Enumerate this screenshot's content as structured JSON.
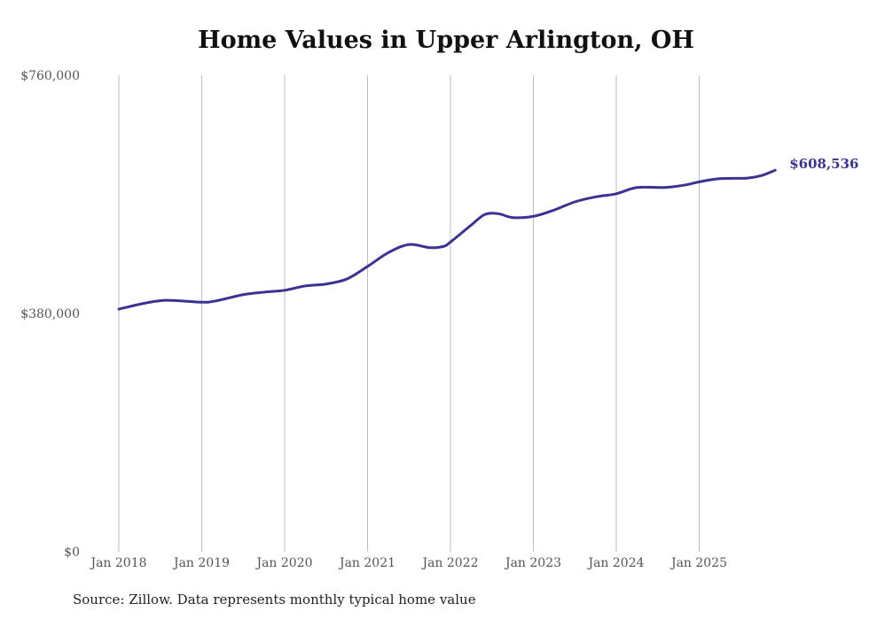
{
  "chart_data": {
    "type": "line",
    "title": "Home Values in Upper Arlington, OH",
    "source": "Source: Zillow. Data represents monthly typical home value",
    "xlabel": "",
    "ylabel": "",
    "ylim": [
      0,
      760000
    ],
    "yticks": [
      0,
      380000,
      760000
    ],
    "ytick_labels": [
      "$0",
      "$380,000",
      "$760,000"
    ],
    "xticks": [
      "2018-01",
      "2019-01",
      "2020-01",
      "2021-01",
      "2022-01",
      "2023-01",
      "2024-01",
      "2025-01"
    ],
    "xtick_labels": [
      "Jan 2018",
      "Jan 2019",
      "Jan 2020",
      "Jan 2021",
      "Jan 2022",
      "Jan 2023",
      "Jan 2024",
      "Jan 2025"
    ],
    "grid": "vertical",
    "line_color": "#3b3391",
    "end_label": "$608,536",
    "series": [
      {
        "name": "Typical home value",
        "x": [
          "2018-01",
          "2018-05",
          "2018-08",
          "2019-01",
          "2019-03",
          "2019-07",
          "2019-10",
          "2020-01",
          "2020-04",
          "2020-07",
          "2020-10",
          "2021-01",
          "2021-04",
          "2021-07",
          "2021-10",
          "2021-12",
          "2022-01",
          "2022-04",
          "2022-06",
          "2022-08",
          "2022-10",
          "2023-01",
          "2023-04",
          "2023-07",
          "2023-10",
          "2024-01",
          "2024-04",
          "2024-08",
          "2024-11",
          "2025-01",
          "2025-04",
          "2025-08",
          "2025-10",
          "2025-12"
        ],
        "values": [
          387000,
          397000,
          401000,
          398000,
          400000,
          410000,
          414000,
          417000,
          424000,
          427000,
          435000,
          455000,
          477000,
          490000,
          485000,
          487000,
          494000,
          521000,
          538000,
          539000,
          533000,
          535000,
          545000,
          558000,
          566000,
          571000,
          581000,
          581000,
          585000,
          590000,
          595000,
          596000,
          600000,
          608536
        ]
      }
    ]
  }
}
